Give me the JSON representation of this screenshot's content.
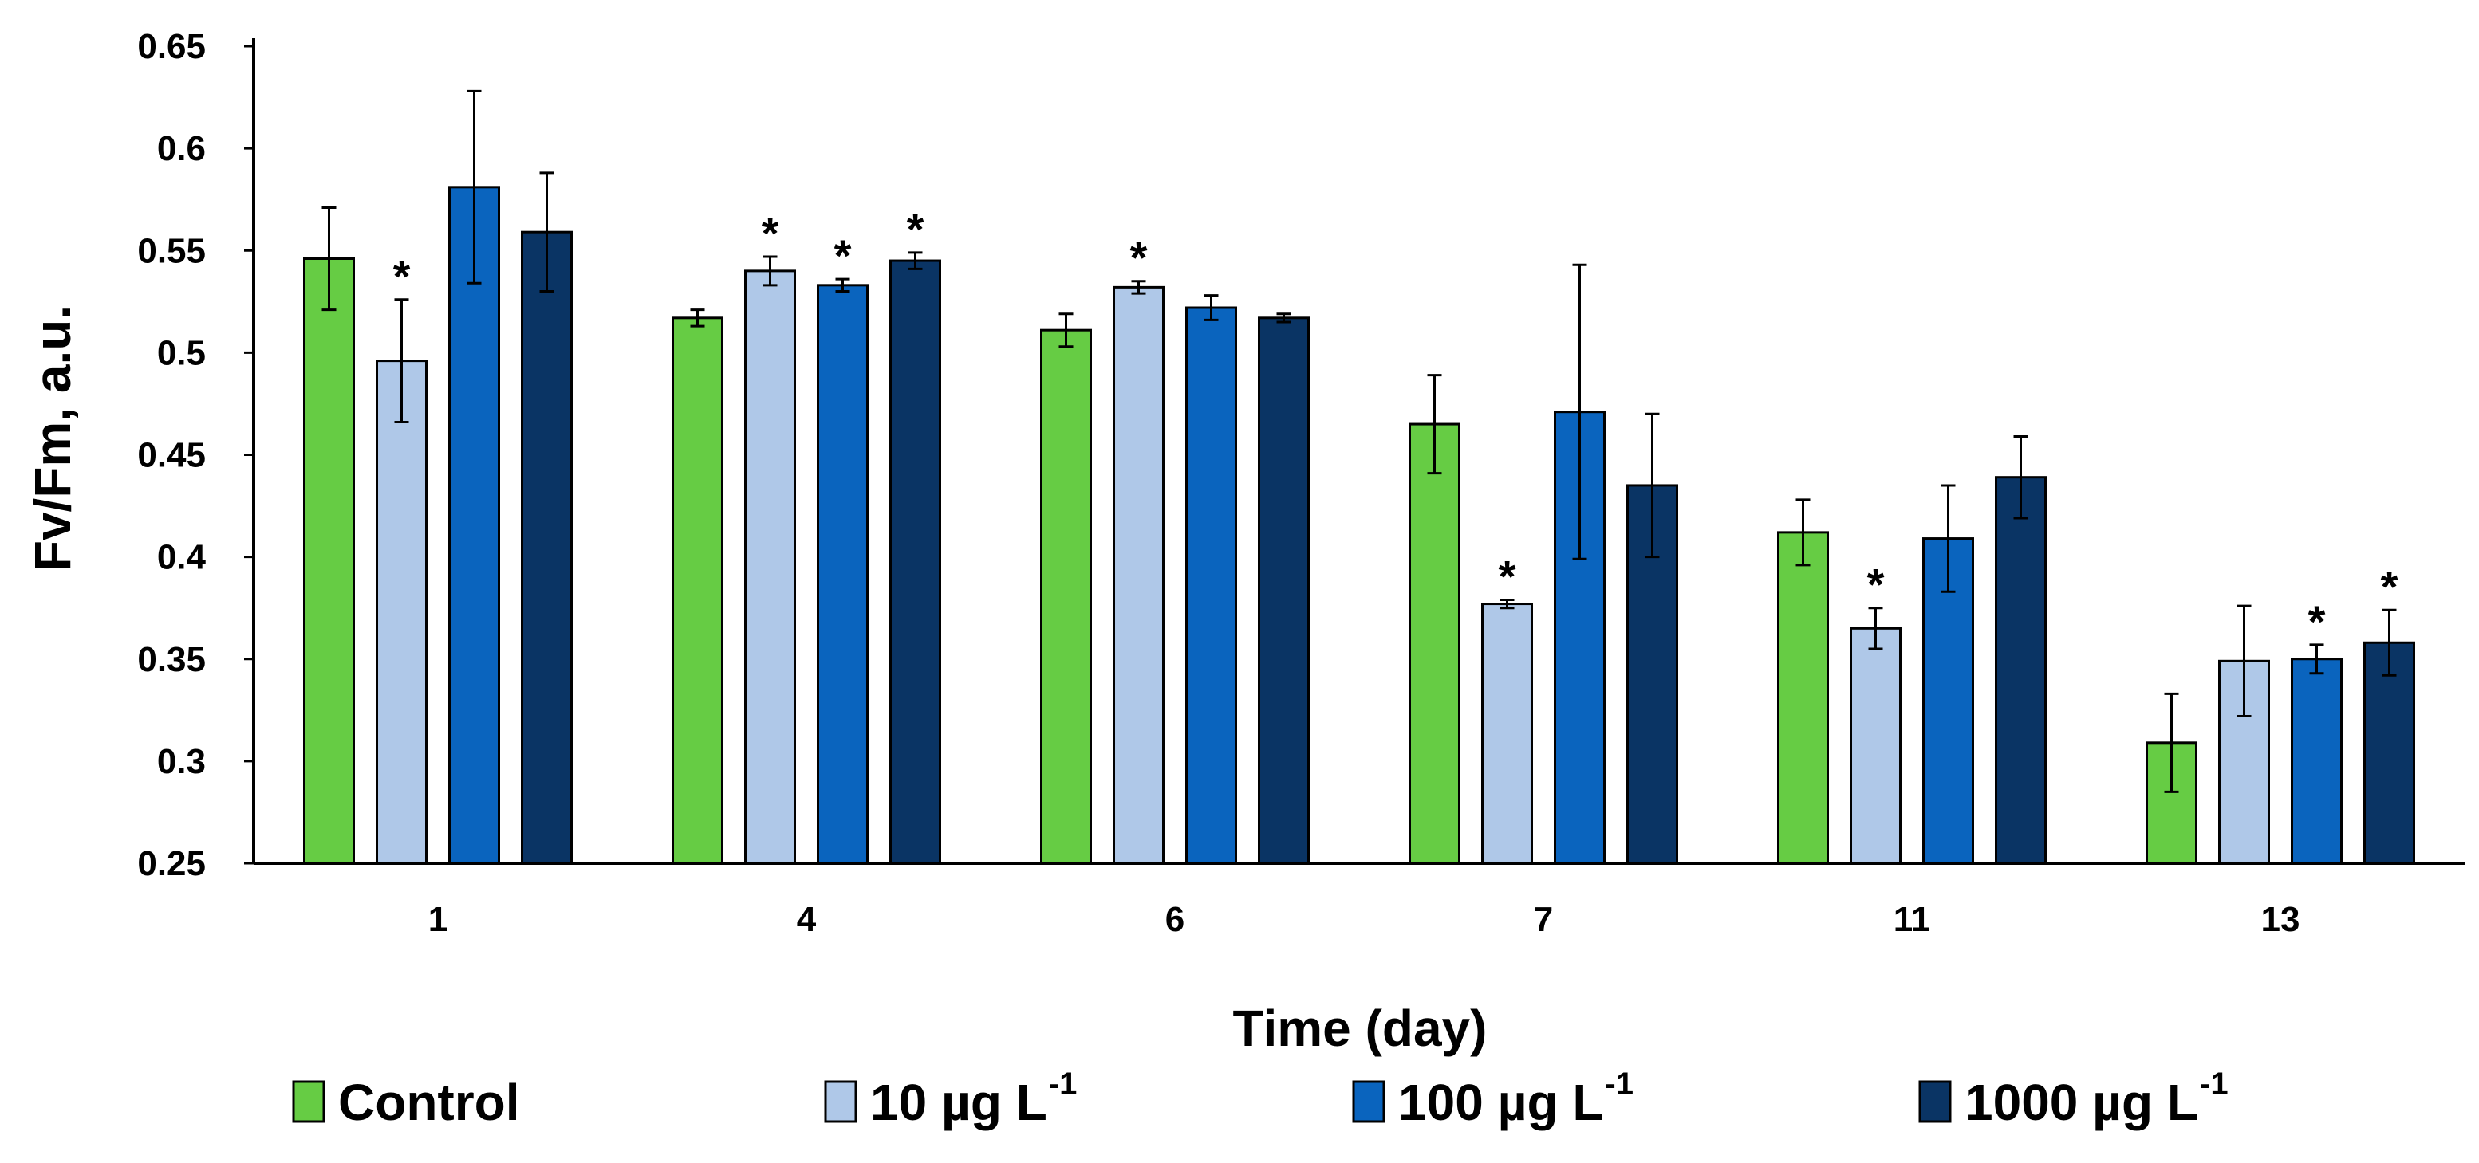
{
  "chart_data": {
    "type": "bar",
    "title": "",
    "xlabel": "Time (day)",
    "ylabel": "Fv/Fm, a.u.",
    "ylim": [
      0.25,
      0.65
    ],
    "yticks": [
      "0.25",
      "0.3",
      "0.35",
      "0.4",
      "0.45",
      "0.5",
      "0.55",
      "0.6",
      "0.65"
    ],
    "categories": [
      "1",
      "4",
      "6",
      "7",
      "11",
      "13"
    ],
    "legend_position": "bottom",
    "colors": [
      "#66CC44",
      "#AFC8E8",
      "#0A64BE",
      "#0A3464"
    ],
    "significance_marker": "*",
    "series": [
      {
        "name": "Control",
        "sup": "",
        "values": [
          0.546,
          0.517,
          0.511,
          0.465,
          0.412,
          0.309
        ],
        "errors": [
          0.025,
          0.004,
          0.008,
          0.024,
          0.016,
          0.024
        ],
        "significant": [
          false,
          false,
          false,
          false,
          false,
          false
        ]
      },
      {
        "name": "10 µg L",
        "sup": "-1",
        "values": [
          0.496,
          0.54,
          0.532,
          0.377,
          0.365,
          0.349
        ],
        "errors": [
          0.03,
          0.007,
          0.003,
          0.002,
          0.01,
          0.027
        ],
        "significant": [
          true,
          true,
          true,
          true,
          true,
          false
        ]
      },
      {
        "name": "100 µg L",
        "sup": "-1",
        "values": [
          0.581,
          0.533,
          0.522,
          0.471,
          0.409,
          0.35
        ],
        "errors": [
          0.047,
          0.003,
          0.006,
          0.072,
          0.026,
          0.007
        ],
        "significant": [
          false,
          true,
          false,
          false,
          false,
          true
        ]
      },
      {
        "name": "1000 µg L",
        "sup": "-1",
        "values": [
          0.559,
          0.545,
          0.517,
          0.435,
          0.439,
          0.358
        ],
        "errors": [
          0.029,
          0.004,
          0.002,
          0.035,
          0.02,
          0.016
        ],
        "significant": [
          false,
          true,
          false,
          false,
          false,
          true
        ]
      }
    ]
  }
}
